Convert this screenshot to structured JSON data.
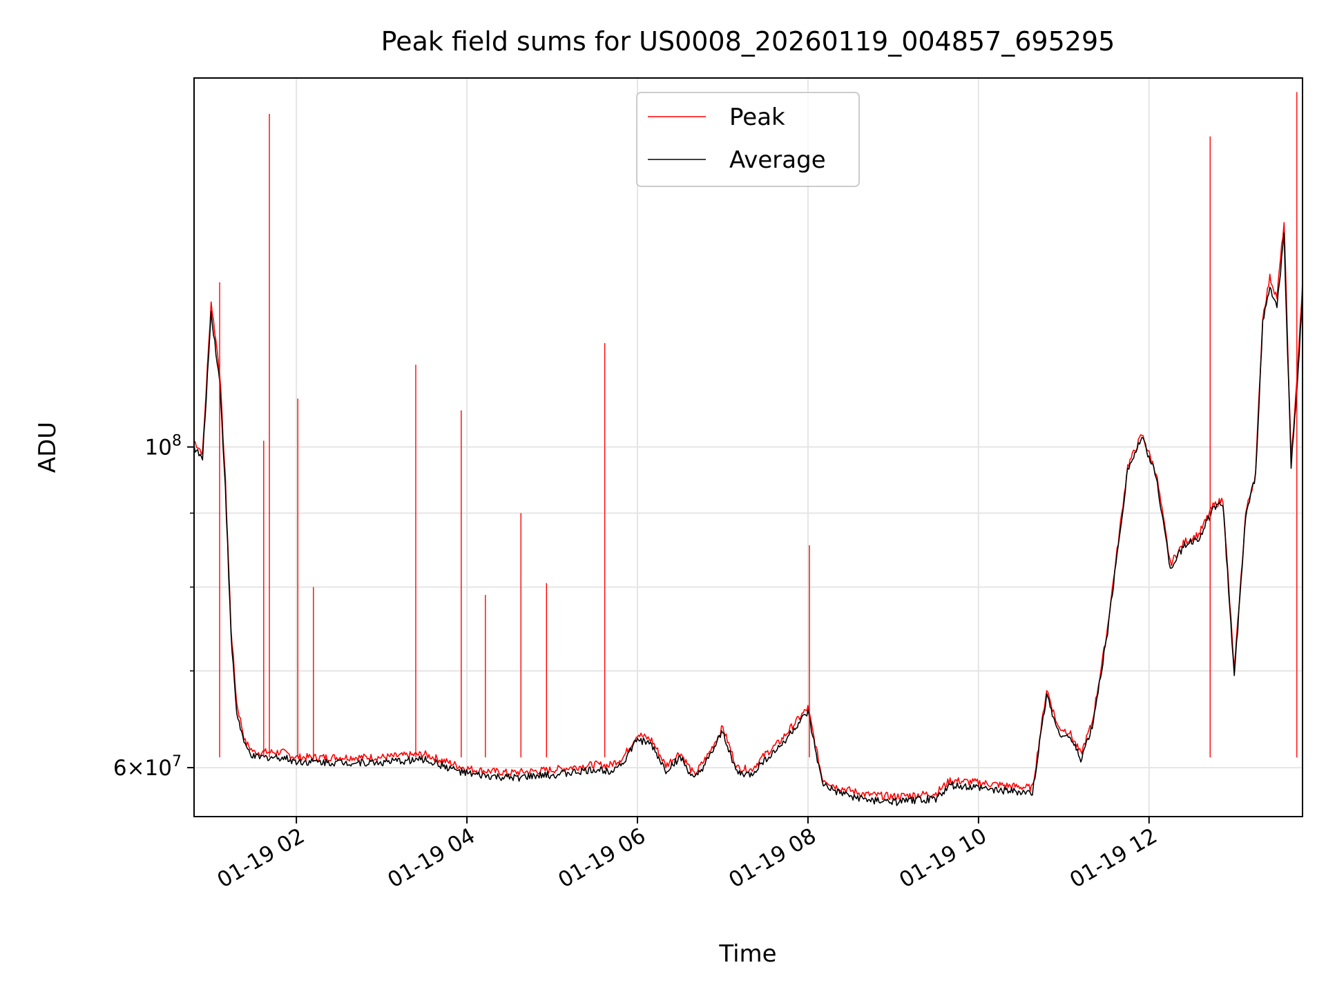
{
  "chart_data": {
    "type": "line",
    "title": "Peak field sums for US0008_20260119_004857_695295",
    "xlabel": "Time",
    "ylabel": "ADU",
    "y_scale": "log",
    "xlim": [
      "01-19 00:48",
      "01-19 13:48"
    ],
    "ylim": [
      55500000,
      180000000
    ],
    "x_tick_labels": [
      "01-19 02",
      "01-19 04",
      "01-19 06",
      "01-19 08",
      "01-19 10",
      "01-19 12"
    ],
    "x_ticks": [
      "01-19 02:00",
      "01-19 04:00",
      "01-19 06:00",
      "01-19 08:00",
      "01-19 10:00",
      "01-19 12:00"
    ],
    "y_major_ticks": [
      {
        "value": 60000000,
        "mantissa": "6",
        "exponent": "7"
      },
      {
        "value": 100000000,
        "mantissa": "",
        "exponent": "8"
      }
    ],
    "y_minor_ticks": [
      70000000,
      80000000,
      90000000
    ],
    "grid": true,
    "legend_location": "upper center",
    "series": [
      {
        "name": "Peak",
        "color": "#ff0000",
        "x": [
          "01-19 00:48",
          "01-19 00:54",
          "01-19 01:00",
          "01-19 01:06",
          "01-19 01:10",
          "01-19 01:14",
          "01-19 01:18",
          "01-19 01:24",
          "01-19 01:30",
          "01-19 01:40",
          "01-19 01:50",
          "01-19 02:00",
          "01-19 02:30",
          "01-19 03:00",
          "01-19 03:30",
          "01-19 03:58",
          "01-19 04:05",
          "01-19 04:30",
          "01-19 05:00",
          "01-19 05:30",
          "01-19 05:40",
          "01-19 05:50",
          "01-19 06:00",
          "01-19 06:10",
          "01-19 06:20",
          "01-19 06:30",
          "01-19 06:40",
          "01-19 06:50",
          "01-19 07:00",
          "01-19 07:10",
          "01-19 07:20",
          "01-19 07:30",
          "01-19 07:40",
          "01-19 07:50",
          "01-19 08:00",
          "01-19 08:10",
          "01-19 08:20",
          "01-19 08:40",
          "01-19 09:00",
          "01-19 09:30",
          "01-19 09:40",
          "01-19 10:00",
          "01-19 10:20",
          "01-19 10:38",
          "01-19 10:48",
          "01-19 10:56",
          "01-19 11:04",
          "01-19 11:12",
          "01-19 11:20",
          "01-19 11:30",
          "01-19 11:45",
          "01-19 11:55",
          "01-19 12:05",
          "01-19 12:15",
          "01-19 12:25",
          "01-19 12:35",
          "01-19 12:45",
          "01-19 12:52",
          "01-19 13:00",
          "01-19 13:08",
          "01-19 13:15",
          "01-19 13:20",
          "01-19 13:25",
          "01-19 13:30",
          "01-19 13:35",
          "01-19 13:40",
          "01-19 13:45",
          "01-19 13:48"
        ],
        "y": [
          101000000,
          99000000,
          126000000,
          113000000,
          95000000,
          75000000,
          66500000,
          62500000,
          61500000,
          61500000,
          61500000,
          61000000,
          61000000,
          61000000,
          61300000,
          60000000,
          59800000,
          59500000,
          59800000,
          60300000,
          60200000,
          61000000,
          63300000,
          62700000,
          60200000,
          61500000,
          59300000,
          61300000,
          64000000,
          60000000,
          59800000,
          61300000,
          62500000,
          64300000,
          66000000,
          59000000,
          58200000,
          57500000,
          57300000,
          57600000,
          58800000,
          58600000,
          58300000,
          58100000,
          68000000,
          64000000,
          63500000,
          61300000,
          64500000,
          74000000,
          97000000,
          102000000,
          96000000,
          83000000,
          86000000,
          87000000,
          91000000,
          92000000,
          70000000,
          90000000,
          96000000,
          123000000,
          131000000,
          127000000,
          143000000,
          98000000,
          115000000,
          130000000
        ]
      },
      {
        "name": "Average",
        "color": "#000000",
        "x": [
          "01-19 00:48",
          "01-19 00:54",
          "01-19 01:00",
          "01-19 01:06",
          "01-19 01:10",
          "01-19 01:14",
          "01-19 01:18",
          "01-19 01:24",
          "01-19 01:30",
          "01-19 01:40",
          "01-19 01:50",
          "01-19 02:00",
          "01-19 02:30",
          "01-19 03:00",
          "01-19 03:30",
          "01-19 03:58",
          "01-19 04:05",
          "01-19 04:30",
          "01-19 05:00",
          "01-19 05:30",
          "01-19 05:40",
          "01-19 05:50",
          "01-19 06:00",
          "01-19 06:10",
          "01-19 06:20",
          "01-19 06:30",
          "01-19 06:40",
          "01-19 06:50",
          "01-19 07:00",
          "01-19 07:10",
          "01-19 07:20",
          "01-19 07:30",
          "01-19 07:40",
          "01-19 07:50",
          "01-19 08:00",
          "01-19 08:10",
          "01-19 08:20",
          "01-19 08:40",
          "01-19 09:00",
          "01-19 09:30",
          "01-19 09:40",
          "01-19 10:00",
          "01-19 10:20",
          "01-19 10:38",
          "01-19 10:48",
          "01-19 10:56",
          "01-19 11:04",
          "01-19 11:12",
          "01-19 11:20",
          "01-19 11:30",
          "01-19 11:45",
          "01-19 11:55",
          "01-19 12:05",
          "01-19 12:15",
          "01-19 12:25",
          "01-19 12:35",
          "01-19 12:45",
          "01-19 12:52",
          "01-19 13:00",
          "01-19 13:08",
          "01-19 13:15",
          "01-19 13:20",
          "01-19 13:25",
          "01-19 13:30",
          "01-19 13:35",
          "01-19 13:40",
          "01-19 13:45",
          "01-19 13:48"
        ],
        "y": [
          100000000,
          98000000,
          124000000,
          111000000,
          94000000,
          74000000,
          65500000,
          62000000,
          61000000,
          61000000,
          61000000,
          60600000,
          60500000,
          60500000,
          60800000,
          59500000,
          59300000,
          59000000,
          59300000,
          59800000,
          59700000,
          60500000,
          62800000,
          62200000,
          59700000,
          61000000,
          58800000,
          60800000,
          63500000,
          59500000,
          59300000,
          60800000,
          62000000,
          63800000,
          65500000,
          58500000,
          57700000,
          57000000,
          56800000,
          57100000,
          58300000,
          58100000,
          57800000,
          57600000,
          67500000,
          63500000,
          63000000,
          60800000,
          64000000,
          73500000,
          96500000,
          101500000,
          95500000,
          82500000,
          85500000,
          86500000,
          90500000,
          91500000,
          69500000,
          89500000,
          95500000,
          122000000,
          129000000,
          125000000,
          140000000,
          97000000,
          113000000,
          128000000
        ]
      }
    ],
    "spikes": [
      {
        "x": "01-19 01:41",
        "y": 170000000
      },
      {
        "x": "01-19 01:37",
        "y": 101000000
      },
      {
        "x": "01-19 01:06",
        "y": 130000000
      },
      {
        "x": "01-19 02:01",
        "y": 108000000
      },
      {
        "x": "01-19 02:12",
        "y": 80000000
      },
      {
        "x": "01-19 03:24",
        "y": 114000000
      },
      {
        "x": "01-19 03:56",
        "y": 106000000
      },
      {
        "x": "01-19 04:13",
        "y": 79000000
      },
      {
        "x": "01-19 04:38",
        "y": 90000000
      },
      {
        "x": "01-19 04:56",
        "y": 80500000
      },
      {
        "x": "01-19 05:37",
        "y": 118000000
      },
      {
        "x": "01-19 08:01",
        "y": 85500000
      },
      {
        "x": "01-19 12:43",
        "y": 164000000
      },
      {
        "x": "01-19 13:44",
        "y": 176000000
      }
    ]
  }
}
